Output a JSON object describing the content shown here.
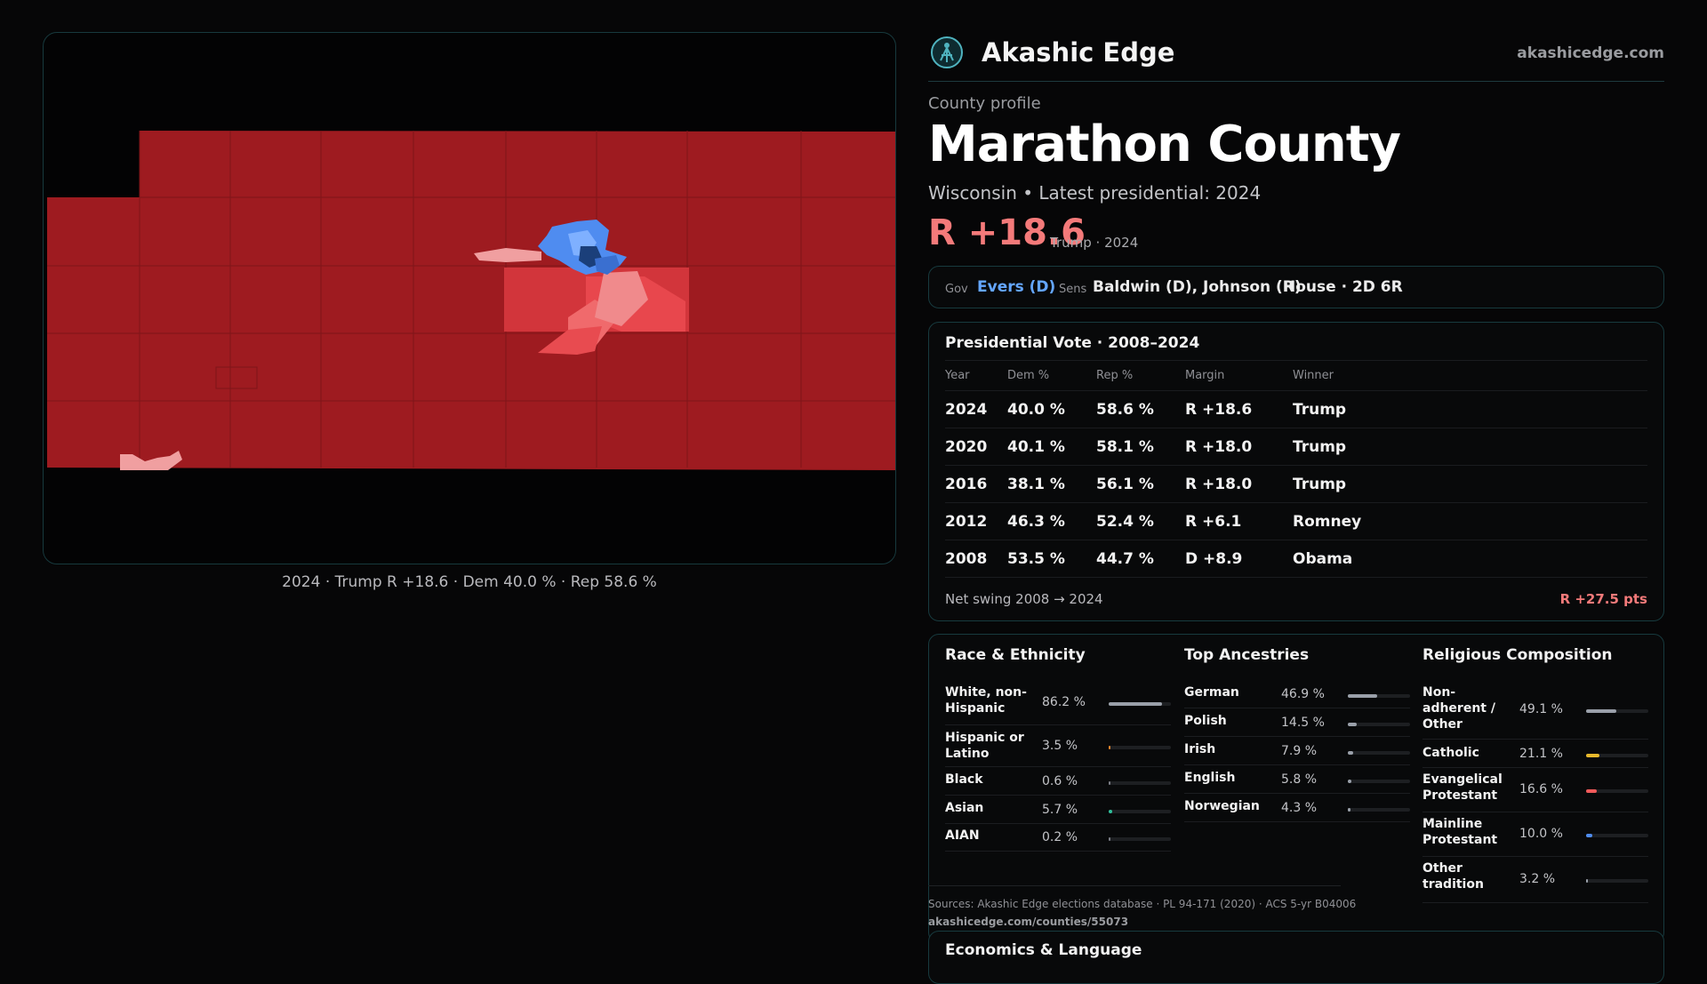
{
  "brand": {
    "name": "Akashic Edge",
    "url": "akashicedge.com"
  },
  "profile": {
    "kicker": "County profile",
    "county": "Marathon County",
    "subtitle": "Wisconsin • Latest presidential: 2024",
    "margin": "R +18.6",
    "margin_note": "Trump · 2024"
  },
  "officials": {
    "gov_label": "Gov",
    "gov": "Evers (D)",
    "sens_label": "Sens",
    "sens": "Baldwin (D), Johnson (R)",
    "house": "House · 2D 6R"
  },
  "map_caption": "2024 · Trump R +18.6 · Dem 40.0 % · Rep 58.6 %",
  "presidential": {
    "title": "Presidential Vote · 2008–2024",
    "headers": [
      "Year",
      "Dem %",
      "Rep %",
      "Margin",
      "Winner"
    ],
    "rows": [
      {
        "year": "2024",
        "dem": "40.0 %",
        "rep": "58.6 %",
        "margin": "R +18.6",
        "winner": "Trump"
      },
      {
        "year": "2020",
        "dem": "40.1 %",
        "rep": "58.1 %",
        "margin": "R +18.0",
        "winner": "Trump"
      },
      {
        "year": "2016",
        "dem": "38.1 %",
        "rep": "56.1 %",
        "margin": "R +18.0",
        "winner": "Trump"
      },
      {
        "year": "2012",
        "dem": "46.3 %",
        "rep": "52.4 %",
        "margin": "R +6.1",
        "winner": "Romney"
      },
      {
        "year": "2008",
        "dem": "53.5 %",
        "rep": "44.7 %",
        "margin": "D +8.9",
        "winner": "Obama"
      }
    ],
    "swing_label": "Net swing 2008 → 2024",
    "swing_value": "R +27.5 pts"
  },
  "race": {
    "title": "Race & Ethnicity",
    "items": [
      {
        "label": "White, non-Hispanic",
        "pct": "86.2 %",
        "value": 86.2,
        "color": "#9aa0aa"
      },
      {
        "label": "Hispanic or Latino",
        "pct": "3.5 %",
        "value": 3.5,
        "color": "#e8872c"
      },
      {
        "label": "Black",
        "pct": "0.6 %",
        "value": 0.6,
        "color": "#7a7d85"
      },
      {
        "label": "Asian",
        "pct": "5.7 %",
        "value": 5.7,
        "color": "#2fbf9b"
      },
      {
        "label": "AIAN",
        "pct": "0.2 %",
        "value": 0.2,
        "color": "#7a7d85"
      }
    ]
  },
  "ancestry": {
    "title": "Top Ancestries",
    "items": [
      {
        "label": "German",
        "pct": "46.9 %",
        "value": 46.9,
        "color": "#9aa0aa"
      },
      {
        "label": "Polish",
        "pct": "14.5 %",
        "value": 14.5,
        "color": "#9aa0aa"
      },
      {
        "label": "Irish",
        "pct": "7.9 %",
        "value": 7.9,
        "color": "#9aa0aa"
      },
      {
        "label": "English",
        "pct": "5.8 %",
        "value": 5.8,
        "color": "#9aa0aa"
      },
      {
        "label": "Norwegian",
        "pct": "4.3 %",
        "value": 4.3,
        "color": "#9aa0aa"
      }
    ]
  },
  "religion": {
    "title": "Religious Composition",
    "items": [
      {
        "label": "Non-adherent / Other",
        "pct": "49.1 %",
        "value": 49.1,
        "color": "#9aa0aa"
      },
      {
        "label": "Catholic",
        "pct": "21.1 %",
        "value": 21.1,
        "color": "#e8b92c"
      },
      {
        "label": "Evangelical Protestant",
        "pct": "16.6 %",
        "value": 16.6,
        "color": "#f05a5a"
      },
      {
        "label": "Mainline Protestant",
        "pct": "10.0 %",
        "value": 10.0,
        "color": "#4f8cf0"
      },
      {
        "label": "Other tradition",
        "pct": "3.2 %",
        "value": 3.2,
        "color": "#9aa0aa"
      }
    ]
  },
  "sources": {
    "line": "Sources: Akashic Edge elections database · PL 94-171 (2020) · ACS 5-yr B04006",
    "url": "akashicedge.com/counties/55073"
  },
  "economics": {
    "title": "Economics & Language"
  },
  "colors": {
    "dem": "#64a6ff",
    "rep": "#f47a7a",
    "county_fill": "#9e1b20",
    "border": "#173a3e"
  }
}
